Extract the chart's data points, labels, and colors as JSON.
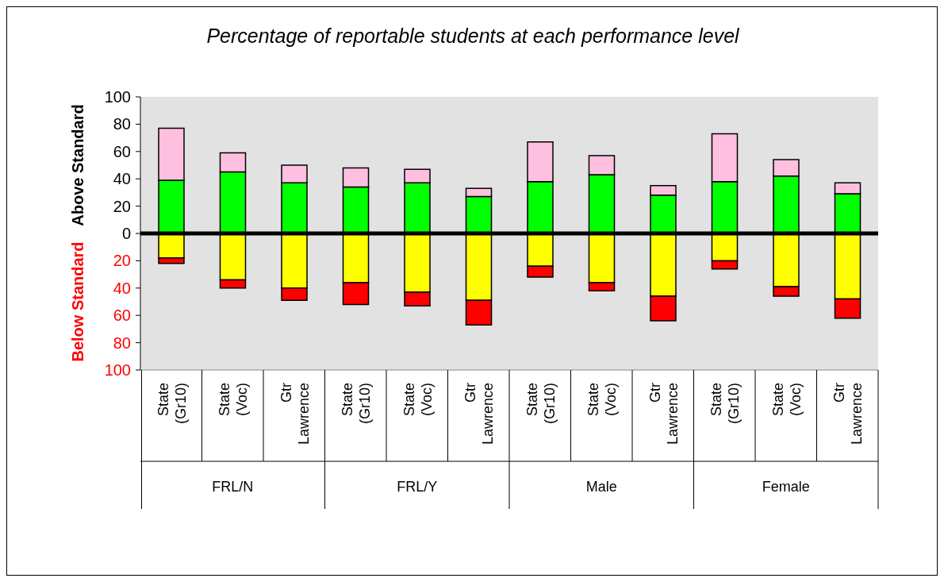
{
  "chart_data": {
    "type": "bar",
    "stacked": true,
    "title": "Percentage of reportable students at each performance level",
    "ylabel": "Above Standard",
    "annotations": [
      "Below Standard",
      "FRL/N",
      "FRL/Y",
      "Male",
      "Female"
    ],
    "categories": [
      "State (Gr10)",
      "State (Voc)",
      "Gtr Lawrence",
      "State (Gr10)",
      "State (Voc)",
      "Gtr Lawrence",
      "State (Gr10)",
      "State (Voc)",
      "Gtr Lawrence",
      "State (Gr10)",
      "State (Voc)",
      "Gtr Lawrence"
    ],
    "series": [
      {
        "color": "#00ff00",
        "values": [
          39,
          45,
          37,
          34,
          37,
          27,
          38,
          43,
          28,
          38,
          42,
          29
        ]
      },
      {
        "color": "#ffc0e0",
        "values": [
          38,
          14,
          13,
          14,
          10,
          6,
          29,
          14,
          7,
          35,
          12,
          8
        ]
      },
      {
        "color": "#ffff00",
        "values": [
          -18,
          -34,
          -40,
          -36,
          -43,
          -49,
          -24,
          -36,
          -46,
          -20,
          -39,
          -48
        ]
      },
      {
        "color": "#ff0000",
        "values": [
          -4,
          -6,
          -9,
          -16,
          -10,
          -18,
          -8,
          -6,
          -18,
          -6,
          -7,
          -14
        ]
      }
    ],
    "ylim": [
      -100,
      100
    ],
    "yticks": [
      {
        "value": -100,
        "label": "100"
      },
      {
        "value": -80,
        "label": "80"
      },
      {
        "value": -60,
        "label": "60"
      },
      {
        "value": -40,
        "label": "40"
      },
      {
        "value": -20,
        "label": "20"
      },
      0,
      20,
      40,
      60,
      80,
      100
    ],
    "ref_lines": [
      {
        "axis": "y",
        "value": 0,
        "color": "#000000"
      }
    ],
    "grid": false,
    "legend": false
  }
}
